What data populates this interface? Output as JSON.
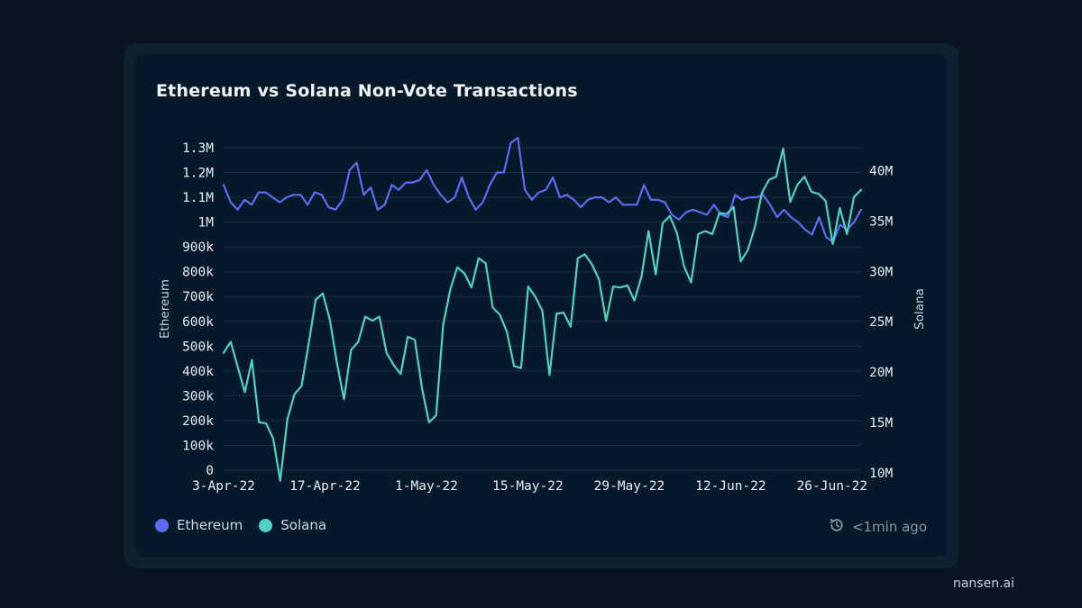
{
  "title": "Ethereum vs Solana Non-Vote Transactions",
  "legend": [
    {
      "name": "Ethereum",
      "color": "#5b6cf2"
    },
    {
      "name": "Solana",
      "color": "#4fd1c5"
    }
  ],
  "updated": {
    "icon": "clock-refresh-icon",
    "text": "<1min ago"
  },
  "brand": "nansen.ai",
  "chart_data": {
    "type": "line",
    "title": "Ethereum vs Solana Non-Vote Transactions",
    "x_tick_labels": [
      "3-Apr-22",
      "17-Apr-22",
      "1-May-22",
      "15-May-22",
      "29-May-22",
      "12-Jun-22",
      "26-Jun-22"
    ],
    "x_start": "2022-04-03",
    "x_end": "2022-06-30",
    "y_left": {
      "label": "Ethereum",
      "range": [
        0,
        1300000
      ],
      "ticks": [
        "0",
        "100k",
        "200k",
        "300k",
        "400k",
        "500k",
        "600k",
        "700k",
        "800k",
        "900k",
        "1M",
        "1.1M",
        "1.2M",
        "1.3M"
      ]
    },
    "y_right": {
      "label": "Solana",
      "range": [
        9000000,
        43000000
      ],
      "ticks": [
        "10M",
        "15M",
        "20M",
        "25M",
        "30M",
        "35M",
        "40M"
      ]
    },
    "grid": true,
    "legend_position": "bottom-left",
    "series": [
      {
        "name": "Ethereum",
        "axis": "left",
        "color": "#5b6cf2",
        "values": [
          1150000,
          1080000,
          1050000,
          1090000,
          1070000,
          1120000,
          1120000,
          1100000,
          1080000,
          1100000,
          1110000,
          1110000,
          1070000,
          1120000,
          1110000,
          1060000,
          1050000,
          1090000,
          1210000,
          1240000,
          1110000,
          1140000,
          1050000,
          1070000,
          1150000,
          1130000,
          1160000,
          1160000,
          1170000,
          1210000,
          1150000,
          1110000,
          1080000,
          1100000,
          1180000,
          1100000,
          1050000,
          1080000,
          1150000,
          1200000,
          1200000,
          1320000,
          1340000,
          1130000,
          1090000,
          1120000,
          1130000,
          1180000,
          1100000,
          1110000,
          1090000,
          1060000,
          1090000,
          1100000,
          1100000,
          1080000,
          1100000,
          1070000,
          1070000,
          1070000,
          1150000,
          1090000,
          1090000,
          1080000,
          1030000,
          1010000,
          1040000,
          1050000,
          1040000,
          1030000,
          1070000,
          1030000,
          1020000,
          1110000,
          1090000,
          1100000,
          1100000,
          1110000,
          1070000,
          1020000,
          1050000,
          1020000,
          1000000,
          970000,
          950000,
          1020000,
          940000,
          920000,
          990000,
          970000,
          1000000,
          1050000
        ]
      },
      {
        "name": "Solana",
        "axis": "right",
        "color": "#4fd1c5",
        "values": [
          21900000,
          23000000,
          20500000,
          18000000,
          21200000,
          15000000,
          14900000,
          13400000,
          9200000,
          15300000,
          17800000,
          18600000,
          22800000,
          27200000,
          27800000,
          25200000,
          20900000,
          17300000,
          22200000,
          23000000,
          25500000,
          25100000,
          25500000,
          21900000,
          20700000,
          19800000,
          23500000,
          23200000,
          18400000,
          15000000,
          15700000,
          24700000,
          28200000,
          30400000,
          29800000,
          28400000,
          31300000,
          30800000,
          26400000,
          25700000,
          24000000,
          20600000,
          20400000,
          28500000,
          27500000,
          26100000,
          19700000,
          25800000,
          25900000,
          24500000,
          31300000,
          31700000,
          30700000,
          29200000,
          25100000,
          28500000,
          28400000,
          28600000,
          27100000,
          29500000,
          34000000,
          29700000,
          34800000,
          35500000,
          33800000,
          30500000,
          28900000,
          33700000,
          34000000,
          33700000,
          35800000,
          35700000,
          36400000,
          31000000,
          32100000,
          34400000,
          37800000,
          39100000,
          39400000,
          42200000,
          36900000,
          38600000,
          39400000,
          37900000,
          37700000,
          37000000,
          32700000,
          36300000,
          33700000,
          37400000,
          38100000
        ]
      }
    ]
  }
}
